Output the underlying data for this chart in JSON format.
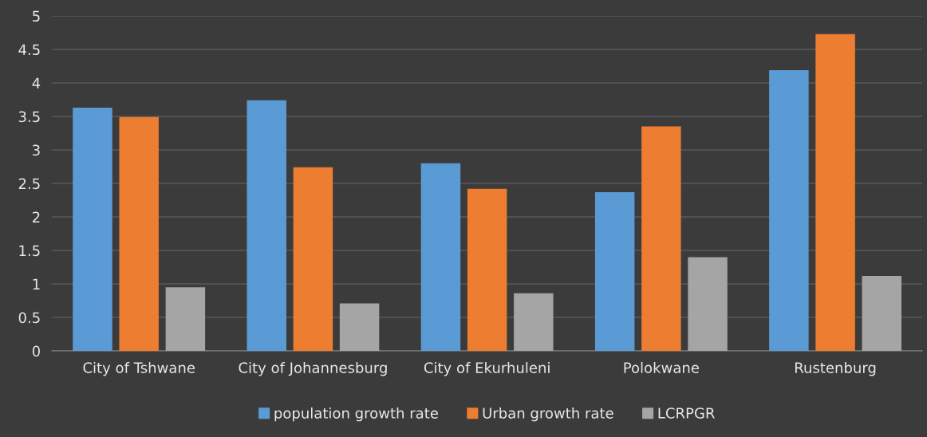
{
  "chart_data": {
    "type": "bar",
    "categories": [
      "City of Tshwane",
      "City of Johannesburg",
      "City of Ekurhuleni",
      "Polokwane",
      "Rustenburg"
    ],
    "series": [
      {
        "name": "population growth rate",
        "color": "#5b9bd5",
        "values": [
          3.63,
          3.74,
          2.8,
          2.37,
          4.19
        ]
      },
      {
        "name": "Urban growth rate",
        "color": "#ed7d31",
        "values": [
          3.49,
          2.74,
          2.42,
          3.35,
          4.73
        ]
      },
      {
        "name": "LCRPGR",
        "color": "#a5a5a5",
        "values": [
          0.95,
          0.71,
          0.86,
          1.4,
          1.12
        ]
      }
    ],
    "ylim": [
      0,
      5
    ],
    "yticks": [
      0,
      0.5,
      1,
      1.5,
      2,
      2.5,
      3,
      3.5,
      4,
      4.5,
      5
    ],
    "grid": "y",
    "legend": "bottom"
  }
}
